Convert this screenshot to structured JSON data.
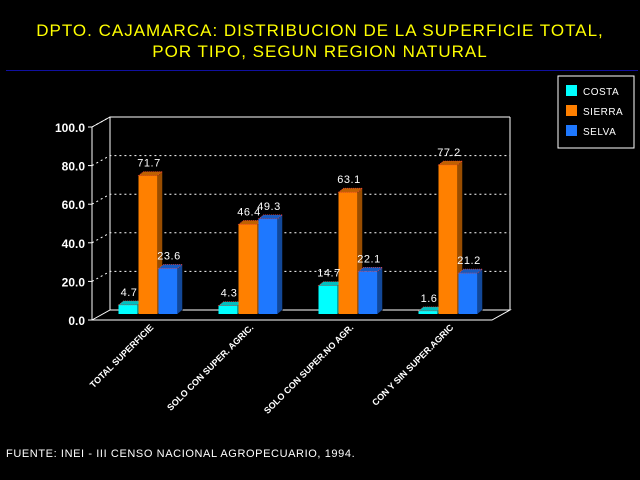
{
  "title_line1": "DPTO. CAJAMARCA: DISTRIBUCION DE LA SUPERFICIE TOTAL,",
  "title_line2": "POR TIPO, SEGUN REGION NATURAL",
  "source": "FUENTE: INEI - III CENSO NACIONAL AGROPECUARIO, 1994.",
  "colors": {
    "background": "#000000",
    "title": "#FFFF00",
    "text": "#FFFFFF",
    "title_rule": "#1010A0"
  },
  "chart_data": {
    "type": "bar",
    "style": "3d",
    "title": "DPTO. CAJAMARCA: DISTRIBUCION DE LA SUPERFICIE TOTAL, POR TIPO, SEGUN REGION NATURAL",
    "xlabel": "",
    "ylabel": "",
    "ylim": [
      0,
      100
    ],
    "yticks": [
      "0.0",
      "20.0",
      "40.0",
      "60.0",
      "80.0",
      "100.0"
    ],
    "grid": true,
    "legend_position": "top-right",
    "categories": [
      "TOTAL SUPERFICIE",
      "SOLO CON SUPER. AGRIC.",
      "SOLO CON SUPER.NO AGR.",
      "CON Y SIN SUPER.AGRIC"
    ],
    "series": [
      {
        "name": "COSTA",
        "color": "#00FFFF",
        "values": [
          4.7,
          4.3,
          14.7,
          1.6
        ],
        "labels": [
          "4.7",
          "4.3",
          "14.7",
          "1.6"
        ]
      },
      {
        "name": "SIERRA",
        "color": "#FF8000",
        "values": [
          71.7,
          46.4,
          63.1,
          77.2
        ],
        "labels": [
          "71.7",
          "46.4",
          "63.1",
          "77.2"
        ]
      },
      {
        "name": "SELVA",
        "color": "#1E78FF",
        "values": [
          23.6,
          49.3,
          22.1,
          21.2
        ],
        "labels": [
          "23.6",
          "49.3",
          "22.1",
          "21.2"
        ]
      }
    ]
  }
}
